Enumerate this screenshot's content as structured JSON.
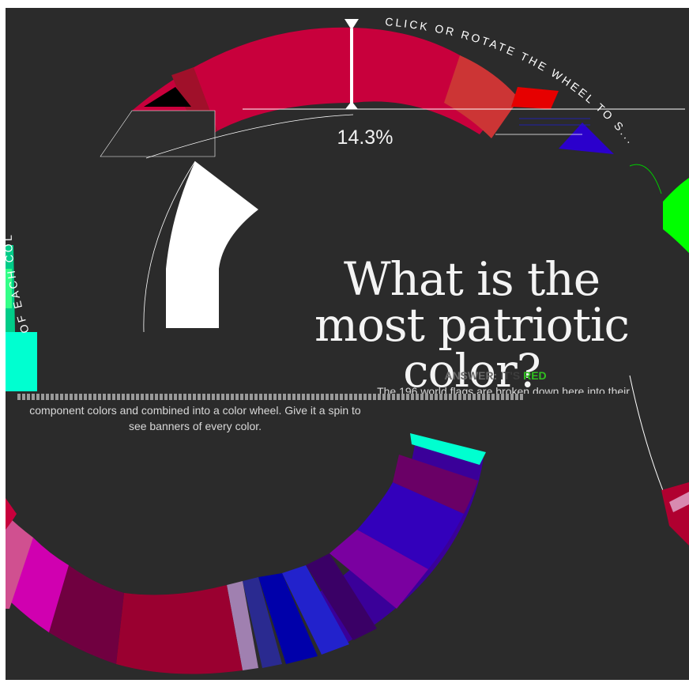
{
  "panel": {
    "background": "#2b2b2b"
  },
  "marker": {
    "percent_label": "14.3%"
  },
  "arc_instruction": "CLICK OR ROTATE THE WHEEL TO S...",
  "arc_instruction_left": "OF EACH COL",
  "headline": "What is the most patriotic color?",
  "answer": {
    "label": "ANSWER:",
    "prefix": "IT'S",
    "color_word": "RED",
    "color_word_hex": "#30c020"
  },
  "description": {
    "line1": "The 196 world flags are broken down here into their",
    "line2": "component colors and combined into a color wheel. Give it a spin to see banners of every color."
  },
  "wheel_colors": [
    "#c8003c",
    "#cc3535",
    "#e60000",
    "#00ff00",
    "#2b00cc",
    "#00ffd0",
    "#6a0066",
    "#3a0099",
    "#2200aa",
    "#7a00a0",
    "#3300cc",
    "#0000aa",
    "#9a0030",
    "#700040",
    "#d000b0",
    "#d05090",
    "#ffffff",
    "#111111"
  ]
}
